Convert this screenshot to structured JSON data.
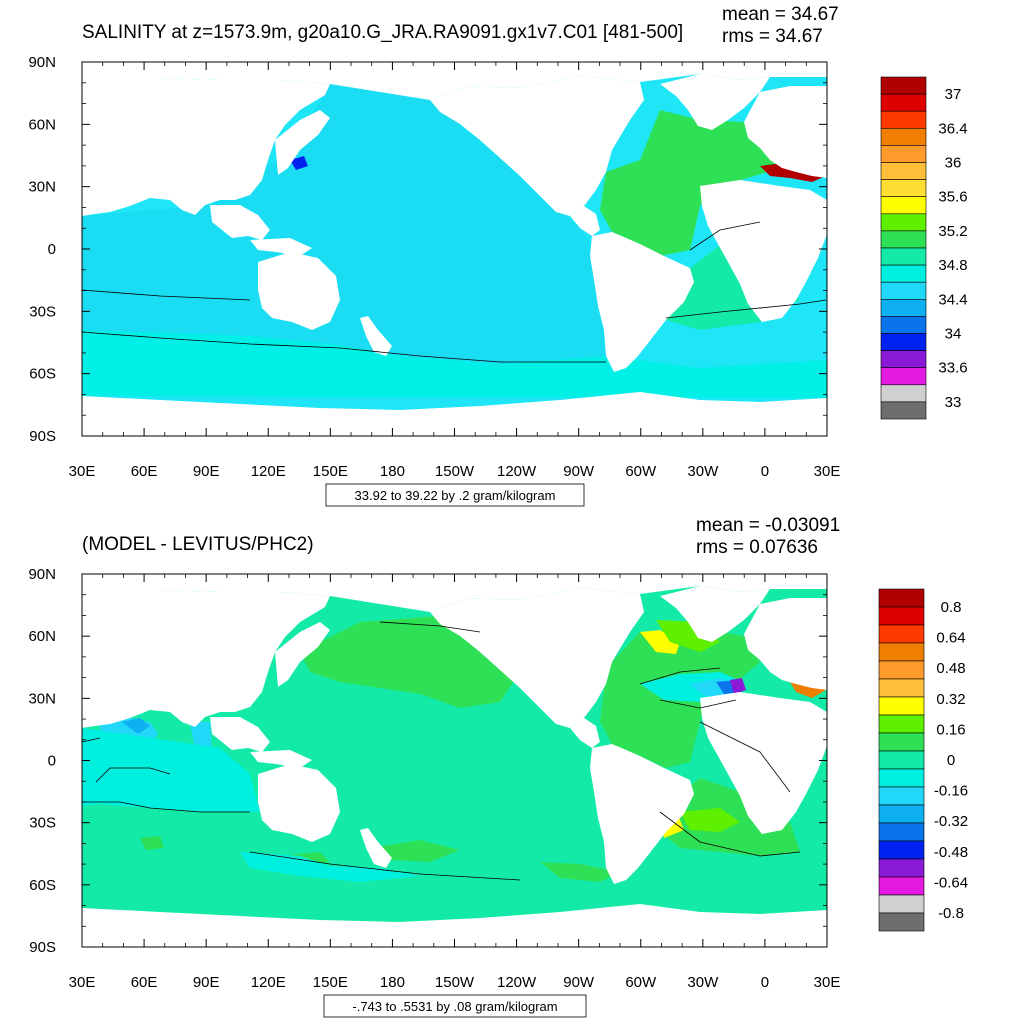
{
  "panels": [
    {
      "title": "SALINITY at z=1573.9m, g20a10.G_JRA.RA9091.gx1v7.C01 [481-500]",
      "mean_text": "mean = 34.67",
      "rms_text": "rms = 34.67",
      "subtitle": "33.92 to 39.22 by .2 gram/kilogram",
      "lat_labels": [
        "90N",
        "60N",
        "30N",
        "0",
        "30S",
        "60S",
        "90S"
      ],
      "lon_labels": [
        "30E",
        "60E",
        "90E",
        "120E",
        "150E",
        "180",
        "150W",
        "120W",
        "90W",
        "60W",
        "30W",
        "0",
        "30E"
      ],
      "colorbar": {
        "labels": [
          "37",
          "36.4",
          "36",
          "35.6",
          "35.2",
          "34.8",
          "34.4",
          "34",
          "33.6",
          "33"
        ],
        "colors": [
          "#b00000",
          "#de0000",
          "#ff3a00",
          "#f07e00",
          "#ff9b2a",
          "#ffbf3a",
          "#ffdd33",
          "#ffff00",
          "#5ef000",
          "#2ee055",
          "#14eaa8",
          "#00f0e0",
          "#22d8f8",
          "#0eb0f2",
          "#0a74ea",
          "#0022f0",
          "#8a1ad8",
          "#e21ae2",
          "#d0d0d0",
          "#6e6e6e"
        ]
      }
    },
    {
      "title": "(MODEL - LEVITUS/PHC2)",
      "mean_text": "mean = -0.03091",
      "rms_text": "rms = 0.07636",
      "subtitle": "-.743 to .5531 by .08 gram/kilogram",
      "lat_labels": [
        "90N",
        "60N",
        "30N",
        "0",
        "30S",
        "60S",
        "90S"
      ],
      "lon_labels": [
        "30E",
        "60E",
        "90E",
        "120E",
        "150E",
        "180",
        "150W",
        "120W",
        "90W",
        "60W",
        "30W",
        "0",
        "30E"
      ],
      "colorbar": {
        "labels": [
          "0.8",
          "0.64",
          "0.48",
          "0.32",
          "0.16",
          "0",
          "-0.16",
          "-0.32",
          "-0.48",
          "-0.64",
          "-0.8"
        ],
        "colors": [
          "#b00000",
          "#de0000",
          "#ff3a00",
          "#f07e00",
          "#ff9b2a",
          "#ffbf3a",
          "#ffff00",
          "#5ef000",
          "#2ee055",
          "#14eaa8",
          "#00f0e0",
          "#22d8f8",
          "#0eb0f2",
          "#0a74ea",
          "#0022f0",
          "#8a1ad8",
          "#e21ae2",
          "#d0d0d0",
          "#6e6e6e"
        ]
      }
    }
  ]
}
